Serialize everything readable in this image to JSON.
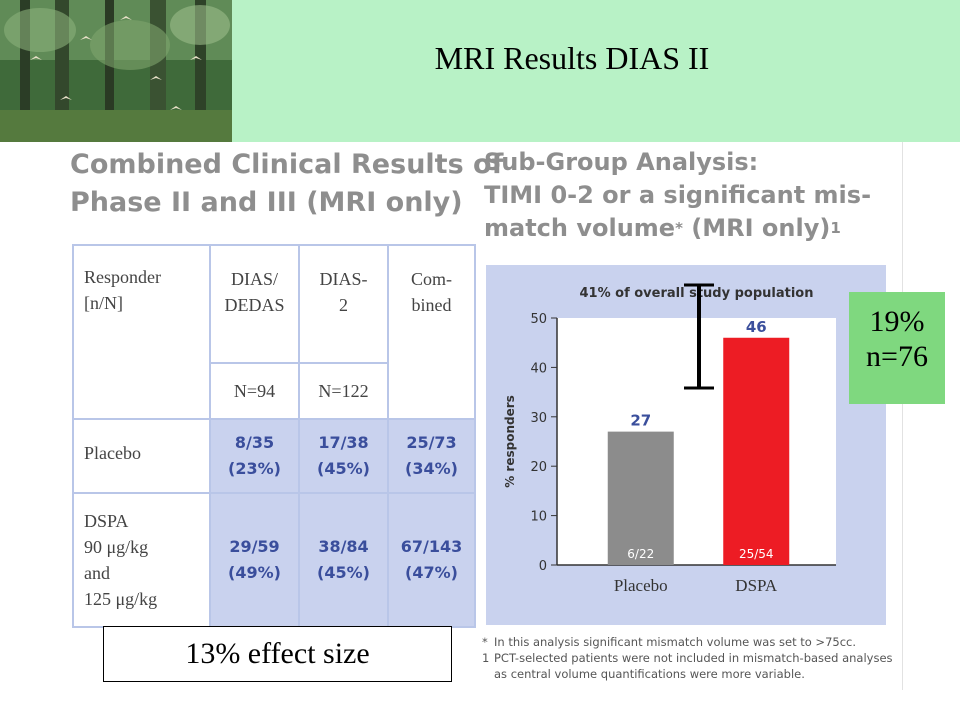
{
  "slide": {
    "title": "MRI Results DIAS II"
  },
  "left_panel": {
    "heading_line1": "Combined Clinical Results of",
    "heading_line2": "Phase II and III (MRI only)",
    "table": {
      "header_label": [
        "Responder",
        "[n/N]"
      ],
      "columns": [
        {
          "label": [
            "DIAS/",
            "DEDAS"
          ],
          "n": "N=94"
        },
        {
          "label": [
            "DIAS-",
            "2"
          ],
          "n": "N=122"
        },
        {
          "label": [
            "Com-",
            "bined"
          ],
          "n": ""
        }
      ],
      "rows": [
        {
          "label": [
            "Placebo"
          ],
          "cells": [
            [
              "8/35",
              "(23%)"
            ],
            [
              "17/38",
              "(45%)"
            ],
            [
              "25/73",
              "(34%)"
            ]
          ]
        },
        {
          "label": [
            "DSPA",
            "90 μg/kg",
            "and",
            "125 μg/kg"
          ],
          "cells": [
            [
              "29/59",
              "(49%)"
            ],
            [
              "38/84",
              "(45%)"
            ],
            [
              "67/143",
              "(47%)"
            ]
          ]
        }
      ]
    }
  },
  "right_panel": {
    "heading_line1": "Sub-Group Analysis:",
    "heading_line2": "TIMI 0-2 or a significant mis-",
    "heading_line3": "match volume",
    "heading_line3_marks": "*",
    "heading_line3_tail": " (MRI only)",
    "heading_sup": "1",
    "footnotes": [
      {
        "mark": "*",
        "text": "In this analysis significant mismatch volume was set to >75cc."
      },
      {
        "mark": "1",
        "text": "PCT-selected patients were not included in mismatch-based analyses as central volume quantifications were more variable."
      }
    ]
  },
  "chart_data": {
    "type": "bar",
    "title": "41% of overall study population",
    "ylabel": "% responders",
    "ylim": [
      0,
      50
    ],
    "yticks": [
      0,
      10,
      20,
      30,
      40,
      50
    ],
    "categories": [
      "Placebo",
      "DSPA"
    ],
    "values": [
      27,
      46
    ],
    "value_labels": [
      "27",
      "46"
    ],
    "bar_labels": [
      "6/22",
      "25/54"
    ],
    "colors": [
      "#8c8c8c",
      "#ed1c24"
    ],
    "value_label_color": "#3b4f9c",
    "grid": false
  },
  "annotations": {
    "effect_size": "13% effect size",
    "subgroup_pct": "19%",
    "subgroup_n": "n=76"
  }
}
